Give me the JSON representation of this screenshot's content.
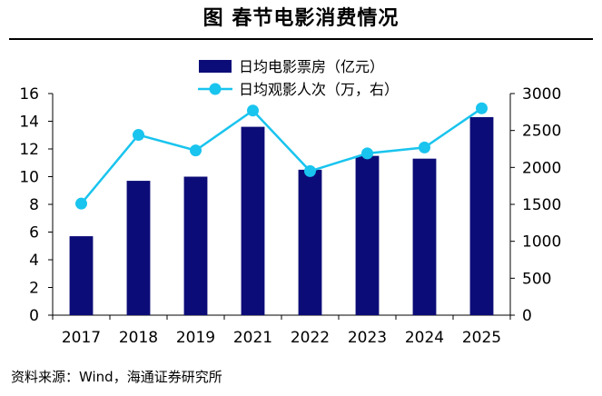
{
  "figure": {
    "title": "图  春节电影消费情况",
    "source": "资料来源：Wind，海通证券研究所"
  },
  "chart_data": {
    "type": "bar",
    "categories": [
      "2017",
      "2018",
      "2019",
      "2021",
      "2022",
      "2023",
      "2024",
      "2025"
    ],
    "series": [
      {
        "name": "日均电影票房（亿元）",
        "type": "bar",
        "axis": "left",
        "color": "#0c0c78",
        "values": [
          5.7,
          9.7,
          10.0,
          13.6,
          10.5,
          11.5,
          11.3,
          14.3
        ]
      },
      {
        "name": "日均观影人次（万，右）",
        "type": "line",
        "axis": "right",
        "color": "#19c4ee",
        "values": [
          1510,
          2440,
          2230,
          2770,
          1950,
          2190,
          2270,
          2800
        ]
      }
    ],
    "left_axis": {
      "min": 0,
      "max": 16,
      "ticks": [
        "0",
        "2",
        "4",
        "6",
        "8",
        "10",
        "12",
        "14",
        "16"
      ]
    },
    "right_axis": {
      "min": 0,
      "max": 3000,
      "ticks": [
        "0",
        "500",
        "1000",
        "1500",
        "2000",
        "2500",
        "3000"
      ]
    },
    "legend_position": "top-center",
    "grid": false
  }
}
